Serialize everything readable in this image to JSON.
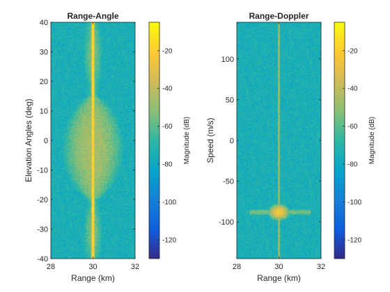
{
  "chart_data": [
    {
      "type": "heatmap",
      "title": "Range-Angle",
      "xlabel": "Range (km)",
      "ylabel": "Elevation Angles (deg)",
      "xlim": [
        28,
        32
      ],
      "ylim": [
        -40,
        40
      ],
      "xticks": [
        28,
        30,
        32
      ],
      "yticks": [
        -40,
        -30,
        -20,
        -10,
        0,
        10,
        20,
        30,
        40
      ],
      "colorbar": {
        "label": "Magnitude (dB)",
        "range": [
          -130,
          -5
        ],
        "ticks": [
          -120,
          -100,
          -80,
          -60,
          -40,
          -20
        ],
        "colormap": "parula"
      },
      "features": [
        {
          "kind": "vertical-ridge",
          "x": 30,
          "peak_db": -15
        },
        {
          "kind": "main-lobe",
          "x": 30,
          "y_range": [
            -20,
            15
          ],
          "level_db": -45
        },
        {
          "kind": "side-lobe",
          "x": 30,
          "y_range": [
            -40,
            -22
          ],
          "level_db": -55
        },
        {
          "kind": "side-lobe",
          "x": 30,
          "y_range": [
            19,
            40
          ],
          "level_db": -55
        }
      ],
      "noise_floor_db": -75
    },
    {
      "type": "heatmap",
      "title": "Range-Doppler",
      "xlabel": "Range (km)",
      "ylabel": "Speed (m/s)",
      "xlim": [
        28,
        32
      ],
      "ylim": [
        -145,
        145
      ],
      "xticks": [
        28,
        30,
        32
      ],
      "yticks": [
        -100,
        -50,
        0,
        50,
        100
      ],
      "colorbar": {
        "label": "Magnitude (dB)",
        "range": [
          -130,
          -5
        ],
        "ticks": [
          -120,
          -100,
          -80,
          -60,
          -40,
          -20
        ],
        "colormap": "parula"
      },
      "features": [
        {
          "kind": "vertical-line",
          "x": 30,
          "level_db": -45
        },
        {
          "kind": "target",
          "x": 30,
          "y": -88,
          "peak_db": -25
        },
        {
          "kind": "horizontal-streak",
          "y": -88,
          "x_range": [
            28.6,
            31.5
          ],
          "level_db": -55
        }
      ],
      "noise_floor_db": -75
    }
  ]
}
